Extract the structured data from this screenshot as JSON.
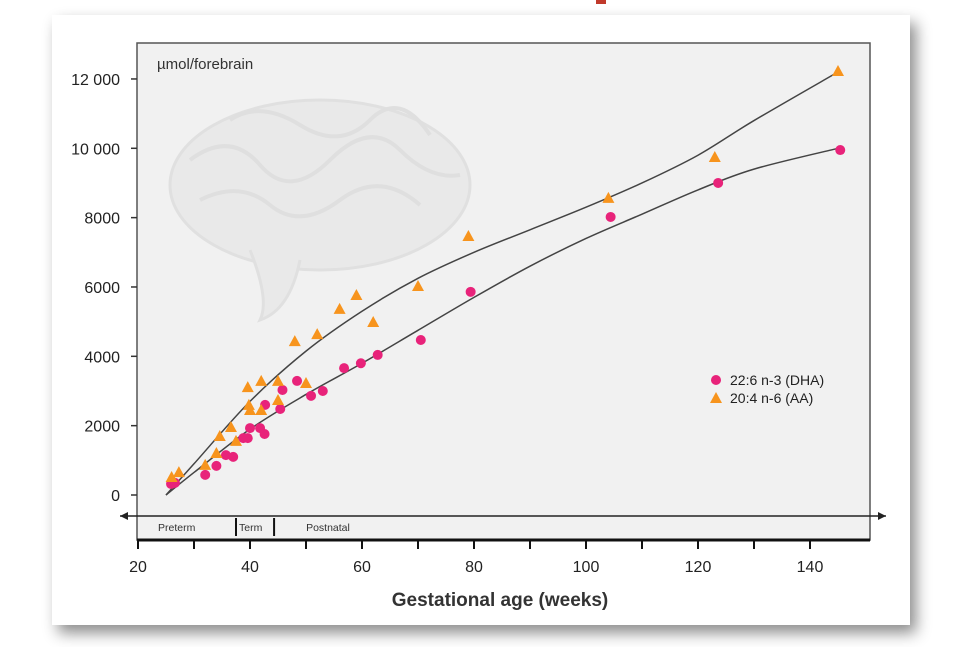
{
  "chart_data": {
    "type": "scatter",
    "title": "",
    "unit_label": "µmol/forebrain",
    "xlabel": "Gestational age (weeks)",
    "ylabel": "",
    "xlim": [
      20,
      152
    ],
    "ylim": [
      0,
      12500
    ],
    "x_ticks": [
      20,
      40,
      60,
      80,
      100,
      120,
      140
    ],
    "x_minor_ticks": [
      30,
      50,
      70,
      90,
      110,
      130
    ],
    "y_ticks": [
      0,
      2000,
      4000,
      6000,
      8000,
      10000,
      12000
    ],
    "y_tick_labels": [
      "0",
      "2000",
      "4000",
      "6000",
      "8000",
      "10 000",
      "12 000"
    ],
    "grid": false,
    "legend_position": "right-middle",
    "periods": [
      {
        "label": "Preterm",
        "from": 20,
        "to": 37.5
      },
      {
        "label": "Term",
        "from": 37.5,
        "to": 44.3
      },
      {
        "label": "Postnatal",
        "from": 44.3,
        "to": 152
      }
    ],
    "series": [
      {
        "name": "22:6 n-3 (DHA)",
        "marker": "circle",
        "color": "#e8237a",
        "points": [
          [
            25.9,
            320
          ],
          [
            26.6,
            350
          ],
          [
            32,
            580
          ],
          [
            34,
            840
          ],
          [
            35.7,
            1150
          ],
          [
            37,
            1100
          ],
          [
            38.8,
            1640
          ],
          [
            39.6,
            1640
          ],
          [
            40,
            1930
          ],
          [
            41.8,
            1930
          ],
          [
            42.6,
            1760
          ],
          [
            42.7,
            2600
          ],
          [
            45.4,
            2480
          ],
          [
            45.8,
            3030
          ],
          [
            48.4,
            3290
          ],
          [
            50.9,
            2860
          ],
          [
            53,
            3000
          ],
          [
            56.8,
            3660
          ],
          [
            59.8,
            3800
          ],
          [
            62.8,
            4040
          ],
          [
            70.5,
            4470
          ],
          [
            79.4,
            5860
          ],
          [
            104.4,
            8020
          ],
          [
            123.6,
            9000
          ],
          [
            145.4,
            9950
          ]
        ],
        "fit_curve": [
          [
            25,
            0
          ],
          [
            30,
            650
          ],
          [
            40,
            1900
          ],
          [
            50,
            2900
          ],
          [
            60,
            3800
          ],
          [
            70,
            4750
          ],
          [
            80,
            5700
          ],
          [
            90,
            6600
          ],
          [
            100,
            7400
          ],
          [
            110,
            8100
          ],
          [
            120,
            8800
          ],
          [
            130,
            9400
          ],
          [
            145,
            10000
          ]
        ]
      },
      {
        "name": "20:4 n-6 (AA)",
        "marker": "triangle",
        "color": "#f7941d",
        "points": [
          [
            26,
            520
          ],
          [
            27.3,
            660
          ],
          [
            32,
            870
          ],
          [
            34,
            1210
          ],
          [
            34.6,
            1700
          ],
          [
            36.6,
            1960
          ],
          [
            37.5,
            1560
          ],
          [
            39.6,
            3110
          ],
          [
            39.8,
            2600
          ],
          [
            40,
            2450
          ],
          [
            42,
            3290
          ],
          [
            42,
            2450
          ],
          [
            45,
            3290
          ],
          [
            45,
            2740
          ],
          [
            48,
            4440
          ],
          [
            50,
            3230
          ],
          [
            52,
            4640
          ],
          [
            56,
            5370
          ],
          [
            59,
            5770
          ],
          [
            62,
            4990
          ],
          [
            70,
            6030
          ],
          [
            79,
            7470
          ],
          [
            104,
            8570
          ],
          [
            123,
            9750
          ],
          [
            145,
            12230
          ]
        ],
        "fit_curve": [
          [
            25,
            0
          ],
          [
            30,
            900
          ],
          [
            40,
            2700
          ],
          [
            50,
            4150
          ],
          [
            60,
            5300
          ],
          [
            70,
            6250
          ],
          [
            80,
            7000
          ],
          [
            90,
            7650
          ],
          [
            100,
            8300
          ],
          [
            110,
            9000
          ],
          [
            120,
            9800
          ],
          [
            130,
            10800
          ],
          [
            145,
            12200
          ]
        ]
      }
    ]
  }
}
